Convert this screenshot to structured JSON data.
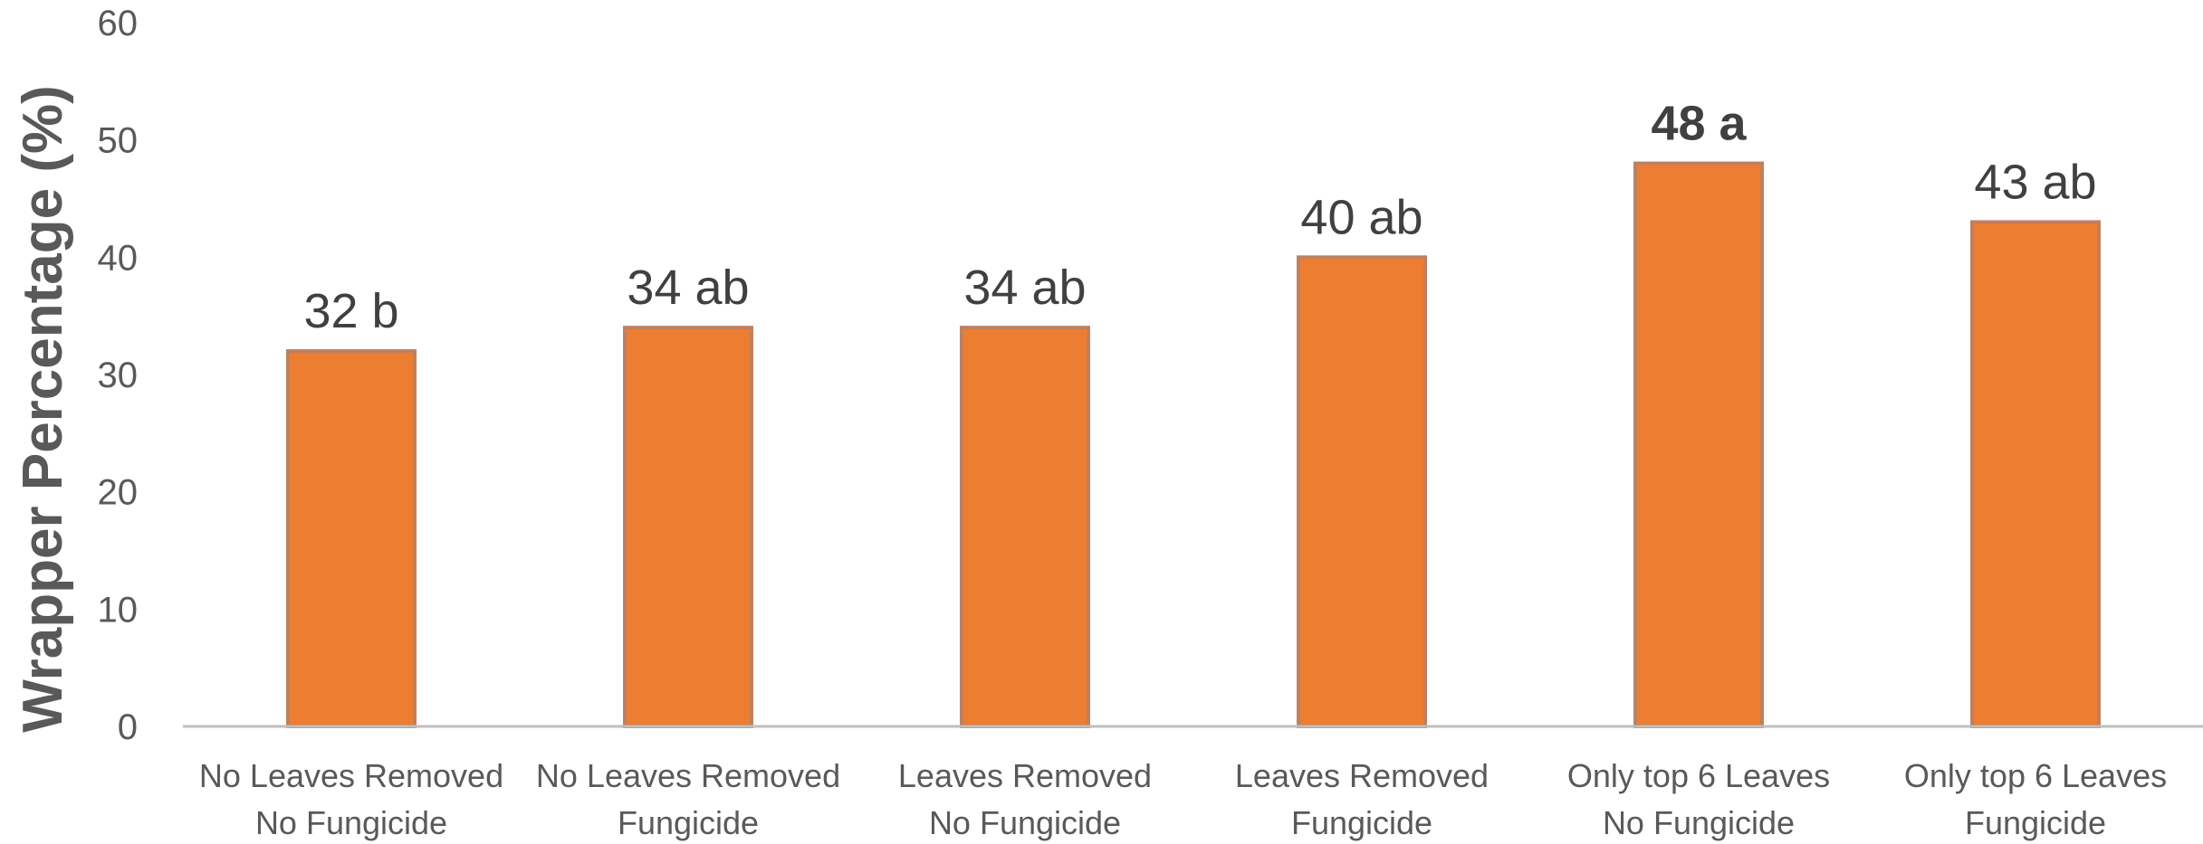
{
  "chart_data": {
    "type": "bar",
    "title": "",
    "xlabel": "",
    "ylabel": "Wrapper Percentage (%)",
    "ylim": [
      0,
      60
    ],
    "yticks": [
      0,
      10,
      20,
      30,
      40,
      50,
      60
    ],
    "grid": false,
    "categories": [
      [
        "No Leaves Removed",
        "No Fungicide"
      ],
      [
        "No Leaves Removed",
        "Fungicide"
      ],
      [
        "Leaves Removed",
        "No Fungicide"
      ],
      [
        "Leaves Removed",
        "Fungicide"
      ],
      [
        "Only top 6 Leaves",
        "No Fungicide"
      ],
      [
        "Only top 6 Leaves",
        "Fungicide"
      ]
    ],
    "values": [
      32,
      34,
      34,
      40,
      48,
      43
    ],
    "data_labels": [
      "32 b",
      "34 ab",
      "34 ab",
      "40 ab",
      "48 a",
      "43 ab"
    ],
    "bold_labels": [
      false,
      false,
      false,
      false,
      true,
      false
    ],
    "colors": {
      "bar_fill": "#ED7D31",
      "bar_edge": "#C0805F",
      "axis": "#BFBFBF"
    }
  }
}
